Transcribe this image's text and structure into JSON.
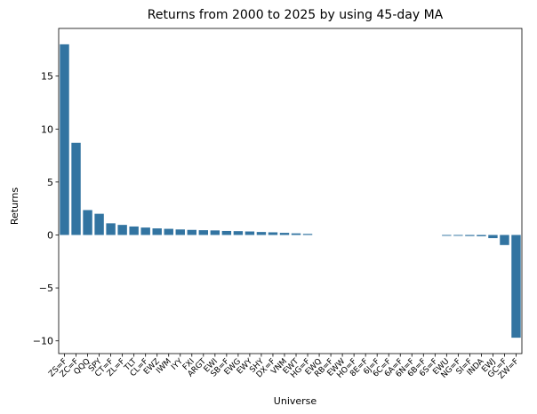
{
  "chart_data": {
    "type": "bar",
    "title": "Returns from 2000 to 2025 by using 45-day MA",
    "xlabel": "Universe",
    "ylabel": "Returns",
    "ylim": [
      -11.2,
      19.5
    ],
    "yticks": [
      -10,
      -5,
      0,
      5,
      10,
      15
    ],
    "ytick_labels": [
      "−10",
      "−5",
      "0",
      "5",
      "10",
      "15"
    ],
    "bar_color": "#3274a1",
    "grid": false,
    "categories": [
      "ZS=F",
      "ZC=F",
      "QQQ",
      "SPY",
      "CT=F",
      "ZL=F",
      "TLT",
      "CL=F",
      "EWZ",
      "IWM",
      "IYY",
      "FXI",
      "ARGT",
      "EWI",
      "SB=F",
      "EWG",
      "EWY",
      "SHY",
      "DX=F",
      "VNM",
      "EWT",
      "HG=F",
      "EWQ",
      "RB=F",
      "EWW",
      "HO=F",
      "8E=F",
      "6J=F",
      "6C=F",
      "6A=F",
      "6N=F",
      "6B=F",
      "6S=F",
      "EWU",
      "NG=F",
      "SI=F",
      "INDA",
      "EWJ",
      "GC=F",
      "ZW=F"
    ],
    "values": [
      18.0,
      8.7,
      2.35,
      2.0,
      1.1,
      0.95,
      0.8,
      0.7,
      0.62,
      0.58,
      0.52,
      0.48,
      0.45,
      0.43,
      0.38,
      0.36,
      0.33,
      0.28,
      0.25,
      0.2,
      0.15,
      0.1,
      0.0,
      0.0,
      0.0,
      0.0,
      0.0,
      0.0,
      0.0,
      0.0,
      0.0,
      0.0,
      0.0,
      -0.08,
      -0.08,
      -0.1,
      -0.12,
      -0.3,
      -0.95,
      -9.7
    ]
  }
}
